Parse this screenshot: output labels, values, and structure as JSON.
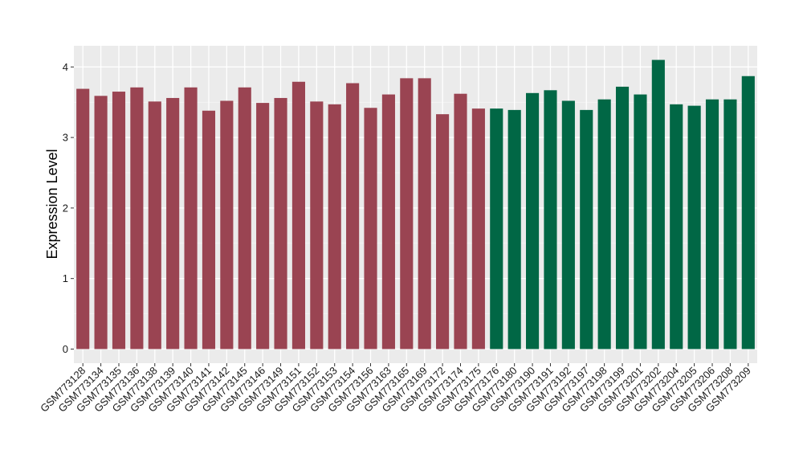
{
  "chart_data": {
    "type": "bar",
    "title": "",
    "xlabel": "",
    "ylabel": "Expression Level",
    "ylim": [
      -0.2,
      4.3
    ],
    "yticks": [
      0,
      1,
      2,
      3,
      4
    ],
    "grid": true,
    "panel_color": "#ebebeb",
    "categories": [
      "GSM773128",
      "GSM773134",
      "GSM773135",
      "GSM773136",
      "GSM773138",
      "GSM773139",
      "GSM773140",
      "GSM773141",
      "GSM773142",
      "GSM773145",
      "GSM773146",
      "GSM773149",
      "GSM773151",
      "GSM773152",
      "GSM773153",
      "GSM773154",
      "GSM773156",
      "GSM773163",
      "GSM773165",
      "GSM773169",
      "GSM773172",
      "GSM773174",
      "GSM773175",
      "GSM773176",
      "GSM773180",
      "GSM773190",
      "GSM773191",
      "GSM773192",
      "GSM773197",
      "GSM773198",
      "GSM773199",
      "GSM773201",
      "GSM773202",
      "GSM773204",
      "GSM773205",
      "GSM773206",
      "GSM773208",
      "GSM773209"
    ],
    "values": [
      3.69,
      3.59,
      3.65,
      3.71,
      3.51,
      3.56,
      3.71,
      3.38,
      3.52,
      3.71,
      3.49,
      3.56,
      3.79,
      3.51,
      3.47,
      3.77,
      3.42,
      3.61,
      3.84,
      3.84,
      3.33,
      3.62,
      3.41,
      3.41,
      3.39,
      3.63,
      3.67,
      3.52,
      3.39,
      3.54,
      3.72,
      3.61,
      4.1,
      3.47,
      3.45,
      3.54,
      3.54,
      3.87
    ],
    "groups": [
      {
        "color": "#9a4452",
        "count": 23
      },
      {
        "color": "#016745",
        "count": 15
      }
    ]
  }
}
